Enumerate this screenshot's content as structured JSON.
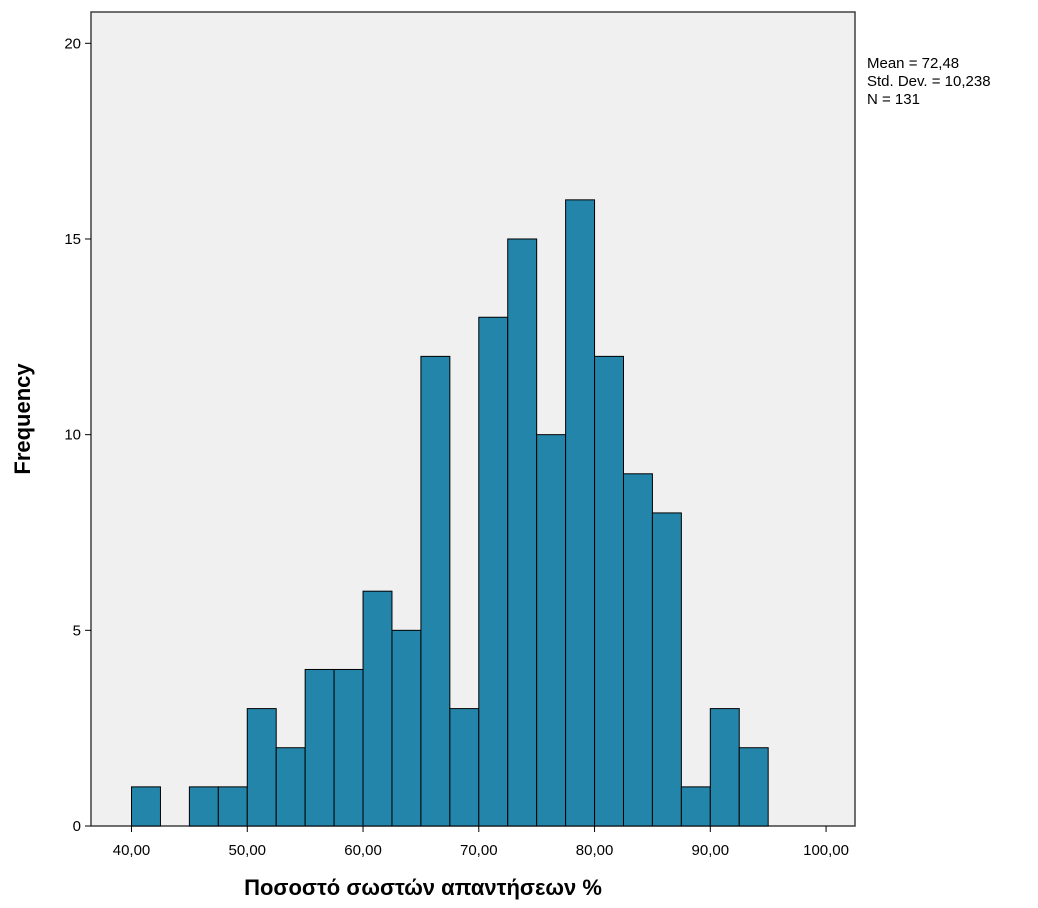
{
  "chart_data": {
    "type": "bar",
    "title": "",
    "xlabel": "Ποσοστό σωστών απαντήσεων %",
    "ylabel": "Frequency",
    "bin_width": 2.5,
    "x_ticks": [
      "40,00",
      "50,00",
      "60,00",
      "70,00",
      "80,00",
      "90,00",
      "100,00"
    ],
    "x_tick_values": [
      40,
      50,
      60,
      70,
      80,
      90,
      100
    ],
    "y_ticks": [
      "0",
      "5",
      "10",
      "15",
      "20"
    ],
    "y_tick_values": [
      0,
      5,
      10,
      15,
      20
    ],
    "xlim": [
      36.5,
      102.5
    ],
    "ylim": [
      0,
      20.8
    ],
    "grid": false,
    "bins": [
      {
        "start": 40.0,
        "value": 1
      },
      {
        "start": 45.0,
        "value": 1
      },
      {
        "start": 47.5,
        "value": 1
      },
      {
        "start": 50.0,
        "value": 3
      },
      {
        "start": 52.5,
        "value": 2
      },
      {
        "start": 55.0,
        "value": 4
      },
      {
        "start": 57.5,
        "value": 4
      },
      {
        "start": 60.0,
        "value": 6
      },
      {
        "start": 62.5,
        "value": 5
      },
      {
        "start": 65.0,
        "value": 12
      },
      {
        "start": 67.5,
        "value": 3
      },
      {
        "start": 70.0,
        "value": 13
      },
      {
        "start": 72.5,
        "value": 15
      },
      {
        "start": 75.0,
        "value": 10
      },
      {
        "start": 77.5,
        "value": 16
      },
      {
        "start": 80.0,
        "value": 12
      },
      {
        "start": 82.5,
        "value": 9
      },
      {
        "start": 85.0,
        "value": 8
      },
      {
        "start": 87.5,
        "value": 1
      },
      {
        "start": 90.0,
        "value": 3
      },
      {
        "start": 92.5,
        "value": 2
      }
    ],
    "stats": {
      "mean": "Mean = 72,48",
      "std_dev": "Std. Dev. = 10,238",
      "n": "N = 131"
    },
    "colors": {
      "bar_fill": "#2385a9",
      "bar_stroke": "#000000",
      "plot_background": "#f0f0f0",
      "frame": "#404040"
    }
  }
}
